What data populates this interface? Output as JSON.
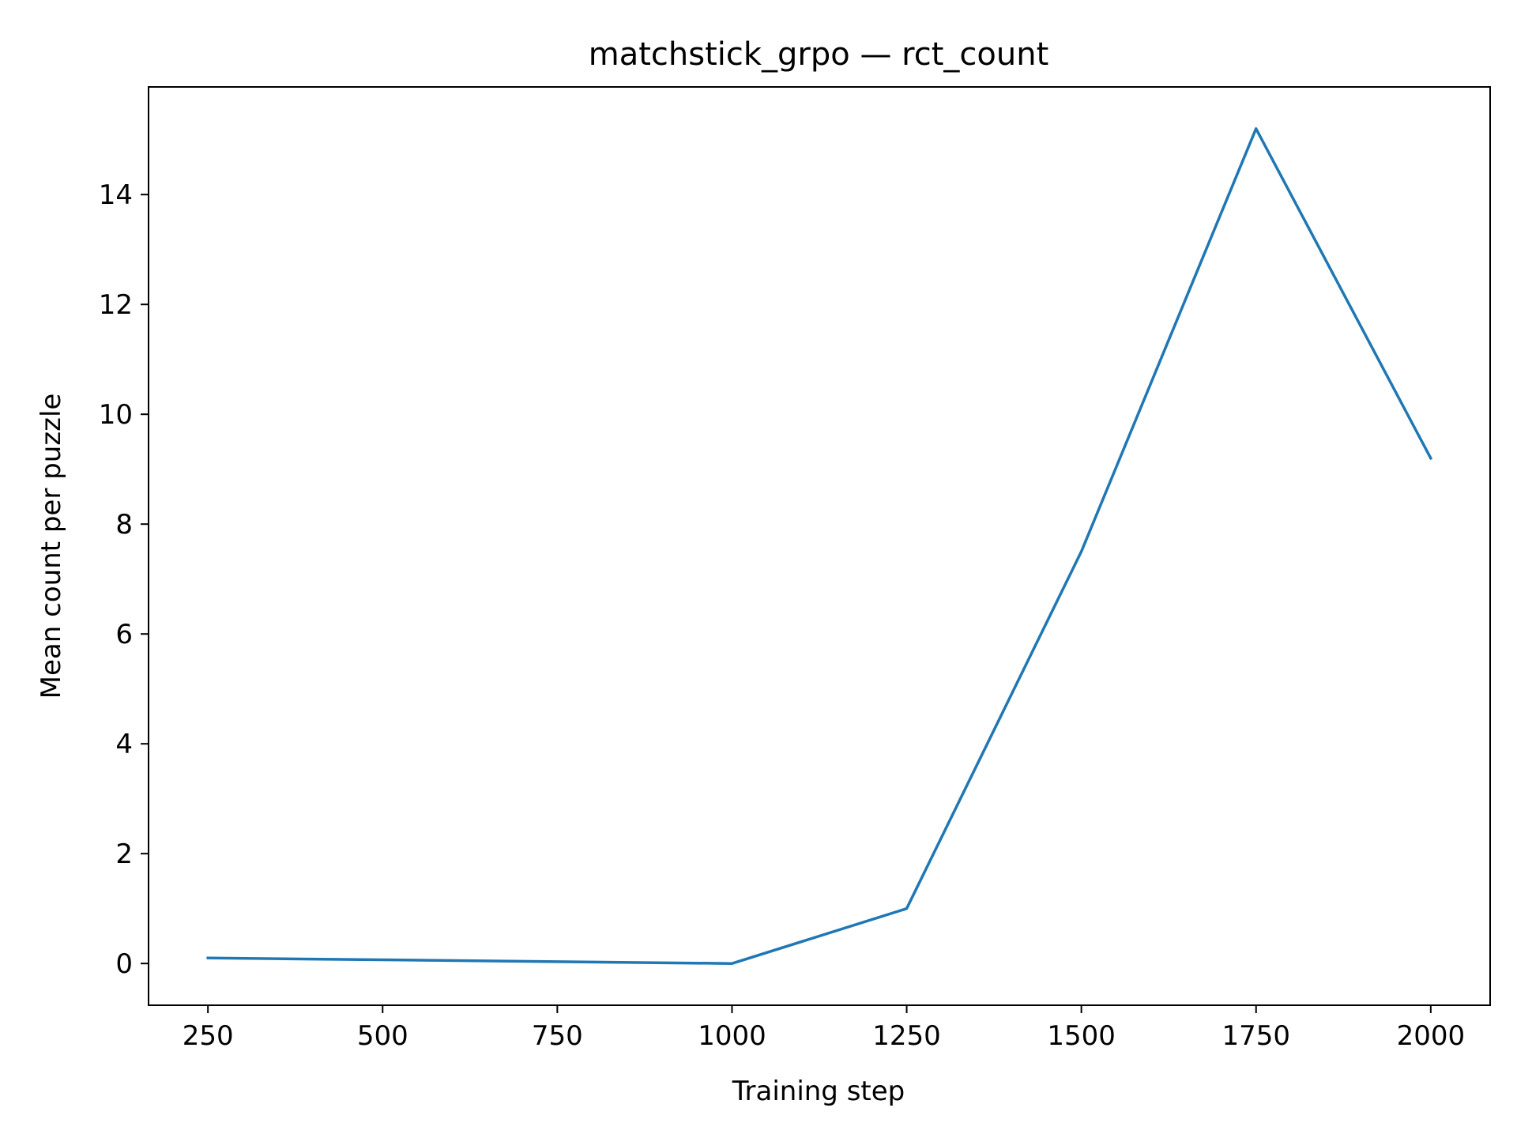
{
  "chart_data": {
    "type": "line",
    "title": "matchstick_grpo — rct_count",
    "xlabel": "Training step",
    "ylabel": "Mean count per puzzle",
    "x": [
      250,
      1000,
      1250,
      1500,
      1750,
      2000
    ],
    "series": [
      {
        "values": [
          0.1,
          0.0,
          1.0,
          7.5,
          15.2,
          9.2
        ],
        "color": "#1f77b4"
      }
    ],
    "xlim": [
      165,
      2085
    ],
    "ylim": [
      -0.76,
      15.96
    ],
    "xticks": [
      250,
      500,
      750,
      1000,
      1250,
      1500,
      1750,
      2000
    ],
    "xtick_labels": [
      "250",
      "500",
      "750",
      "1000",
      "1250",
      "1500",
      "1750",
      "2000"
    ],
    "yticks": [
      0,
      2,
      4,
      6,
      8,
      10,
      12,
      14
    ],
    "ytick_labels": [
      "0",
      "2",
      "4",
      "6",
      "8",
      "10",
      "12",
      "14"
    ],
    "grid": false,
    "legend": "none"
  }
}
